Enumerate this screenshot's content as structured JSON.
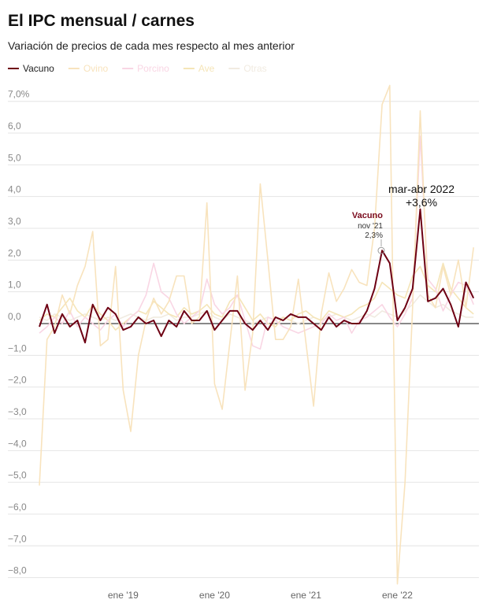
{
  "chart_data": {
    "type": "line",
    "title": "El IPC mensual / carnes",
    "subtitle": "Variación de precios de cada mes respecto al mes anterior",
    "categories": [
      null,
      null,
      null,
      null,
      null,
      null,
      null,
      null,
      null,
      null,
      null,
      "ene '19",
      null,
      null,
      null,
      null,
      null,
      null,
      null,
      null,
      null,
      null,
      null,
      "ene '20",
      null,
      null,
      null,
      null,
      null,
      null,
      null,
      null,
      null,
      null,
      null,
      "ene '21",
      null,
      null,
      null,
      null,
      null,
      null,
      null,
      null,
      null,
      null,
      null,
      "ene '22",
      null,
      null,
      null,
      null,
      null,
      null,
      null,
      null,
      null,
      null
    ],
    "series": [
      {
        "name": "Vacuno",
        "color": "#6e0013",
        "values": [
          -0.1,
          0.6,
          -0.3,
          0.3,
          -0.1,
          0.1,
          -0.6,
          0.6,
          0.1,
          0.5,
          0.3,
          -0.2,
          -0.1,
          0.2,
          0.0,
          0.1,
          -0.4,
          0.1,
          -0.1,
          0.4,
          0.1,
          0.1,
          0.4,
          -0.2,
          0.1,
          0.4,
          0.4,
          0.0,
          -0.2,
          0.1,
          -0.2,
          0.2,
          0.1,
          0.3,
          0.2,
          0.2,
          0.0,
          -0.2,
          0.2,
          -0.1,
          0.1,
          0.0,
          0.0,
          0.4,
          1.1,
          2.3,
          1.9,
          0.1,
          0.5,
          1.1,
          3.6,
          0.7,
          0.8,
          1.1,
          0.6,
          -0.1,
          1.3,
          0.8
        ]
      },
      {
        "name": "Ovino",
        "color": "#f8e3bd",
        "values": [
          -5.1,
          -0.5,
          -0.1,
          0.9,
          0.3,
          1.2,
          1.8,
          2.9,
          -0.7,
          -0.5,
          1.8,
          -2.1,
          -3.4,
          -1.0,
          0.1,
          0.8,
          0.3,
          0.7,
          1.5,
          1.5,
          0.0,
          0.2,
          3.8,
          -1.9,
          -2.7,
          -0.6,
          1.5,
          -2.1,
          -0.3,
          4.4,
          2.0,
          -0.5,
          -0.5,
          -0.1,
          1.4,
          -0.6,
          -2.6,
          0.3,
          1.6,
          0.7,
          1.1,
          1.7,
          1.3,
          1.2,
          3.0,
          6.9,
          7.5,
          -8.2,
          -5.0,
          0.5,
          6.7,
          0.9,
          0.5,
          1.8,
          0.9,
          2.0,
          0.5,
          2.4
        ]
      },
      {
        "name": "Porcino",
        "color": "#f9d6e4",
        "values": [
          -0.3,
          -0.1,
          0.2,
          0.0,
          0.4,
          -0.1,
          0.2,
          0.0,
          -0.2,
          0.1,
          0.3,
          -0.1,
          0.2,
          0.4,
          0.9,
          1.9,
          1.0,
          0.8,
          0.3,
          0.0,
          0.2,
          0.4,
          1.4,
          0.6,
          0.3,
          0.5,
          0.9,
          0.1,
          -0.7,
          -0.8,
          0.2,
          0.1,
          -0.1,
          -0.2,
          -0.3,
          -0.2,
          -0.1,
          0.0,
          0.3,
          0.1,
          0.2,
          -0.3,
          0.1,
          0.2,
          0.4,
          0.6,
          0.2,
          -0.1,
          0.3,
          0.8,
          5.9,
          1.4,
          1.1,
          0.4,
          0.9,
          1.3,
          1.2,
          0.6
        ]
      },
      {
        "name": "Ave",
        "color": "#f5e5b8",
        "values": [
          0.1,
          0.3,
          0.2,
          0.5,
          0.8,
          0.4,
          0.2,
          0.6,
          0.3,
          0.1,
          -0.2,
          0.0,
          0.2,
          0.4,
          0.3,
          0.7,
          0.5,
          0.3,
          0.2,
          0.5,
          0.3,
          0.4,
          0.6,
          0.3,
          0.2,
          0.7,
          0.9,
          0.5,
          0.1,
          0.3,
          0.0,
          -0.1,
          0.2,
          0.1,
          0.3,
          0.4,
          0.2,
          0.1,
          0.4,
          0.3,
          0.2,
          0.3,
          0.5,
          0.6,
          0.8,
          1.3,
          1.1,
          0.9,
          0.8,
          1.5,
          1.8,
          1.2,
          1.0,
          1.9,
          1.1,
          0.8,
          0.5,
          0.3
        ]
      },
      {
        "name": "Otras",
        "color": "#f1ebe1",
        "values": [
          0.2,
          0.1,
          0.3,
          0.2,
          0.1,
          0.2,
          0.3,
          0.2,
          0.1,
          0.2,
          0.1,
          0.2,
          0.3,
          0.2,
          0.1,
          0.2,
          0.2,
          0.3,
          0.1,
          0.2,
          0.2,
          0.3,
          0.4,
          0.2,
          0.1,
          0.3,
          0.2,
          0.1,
          0.0,
          0.1,
          0.2,
          0.1,
          0.2,
          0.1,
          0.0,
          0.1,
          0.2,
          0.1,
          0.2,
          0.3,
          0.2,
          0.1,
          0.2,
          0.3,
          0.2,
          0.4,
          0.3,
          0.2,
          0.4,
          0.6,
          0.9,
          0.7,
          0.5,
          0.6,
          0.4,
          0.3,
          0.2,
          0.2
        ]
      }
    ],
    "annotations": [
      {
        "title": "Vacuno",
        "date": "nov '21",
        "label": "2,3%"
      },
      {
        "date": "mar-abr 2022",
        "label": "+3,6%"
      }
    ],
    "ylim": [
      -8.3,
      7.6
    ],
    "yticks": [
      {
        "value": 7,
        "label": "7,0%"
      },
      {
        "value": 6,
        "label": "6,0"
      },
      {
        "value": 5,
        "label": "5,0"
      },
      {
        "value": 4,
        "label": "4,0"
      },
      {
        "value": 3,
        "label": "3,0"
      },
      {
        "value": 2,
        "label": "2,0"
      },
      {
        "value": 1,
        "label": "1,0"
      },
      {
        "value": 0,
        "label": "0,0"
      },
      {
        "value": -1,
        "label": "−1,0"
      },
      {
        "value": -2,
        "label": "−2,0"
      },
      {
        "value": -3,
        "label": "−3,0"
      },
      {
        "value": -4,
        "label": "−4,0"
      },
      {
        "value": -5,
        "label": "−5,0"
      },
      {
        "value": -6,
        "label": "−6,0"
      },
      {
        "value": -7,
        "label": "−7,0"
      },
      {
        "value": -8,
        "label": "−8,0"
      }
    ],
    "grid": true
  }
}
